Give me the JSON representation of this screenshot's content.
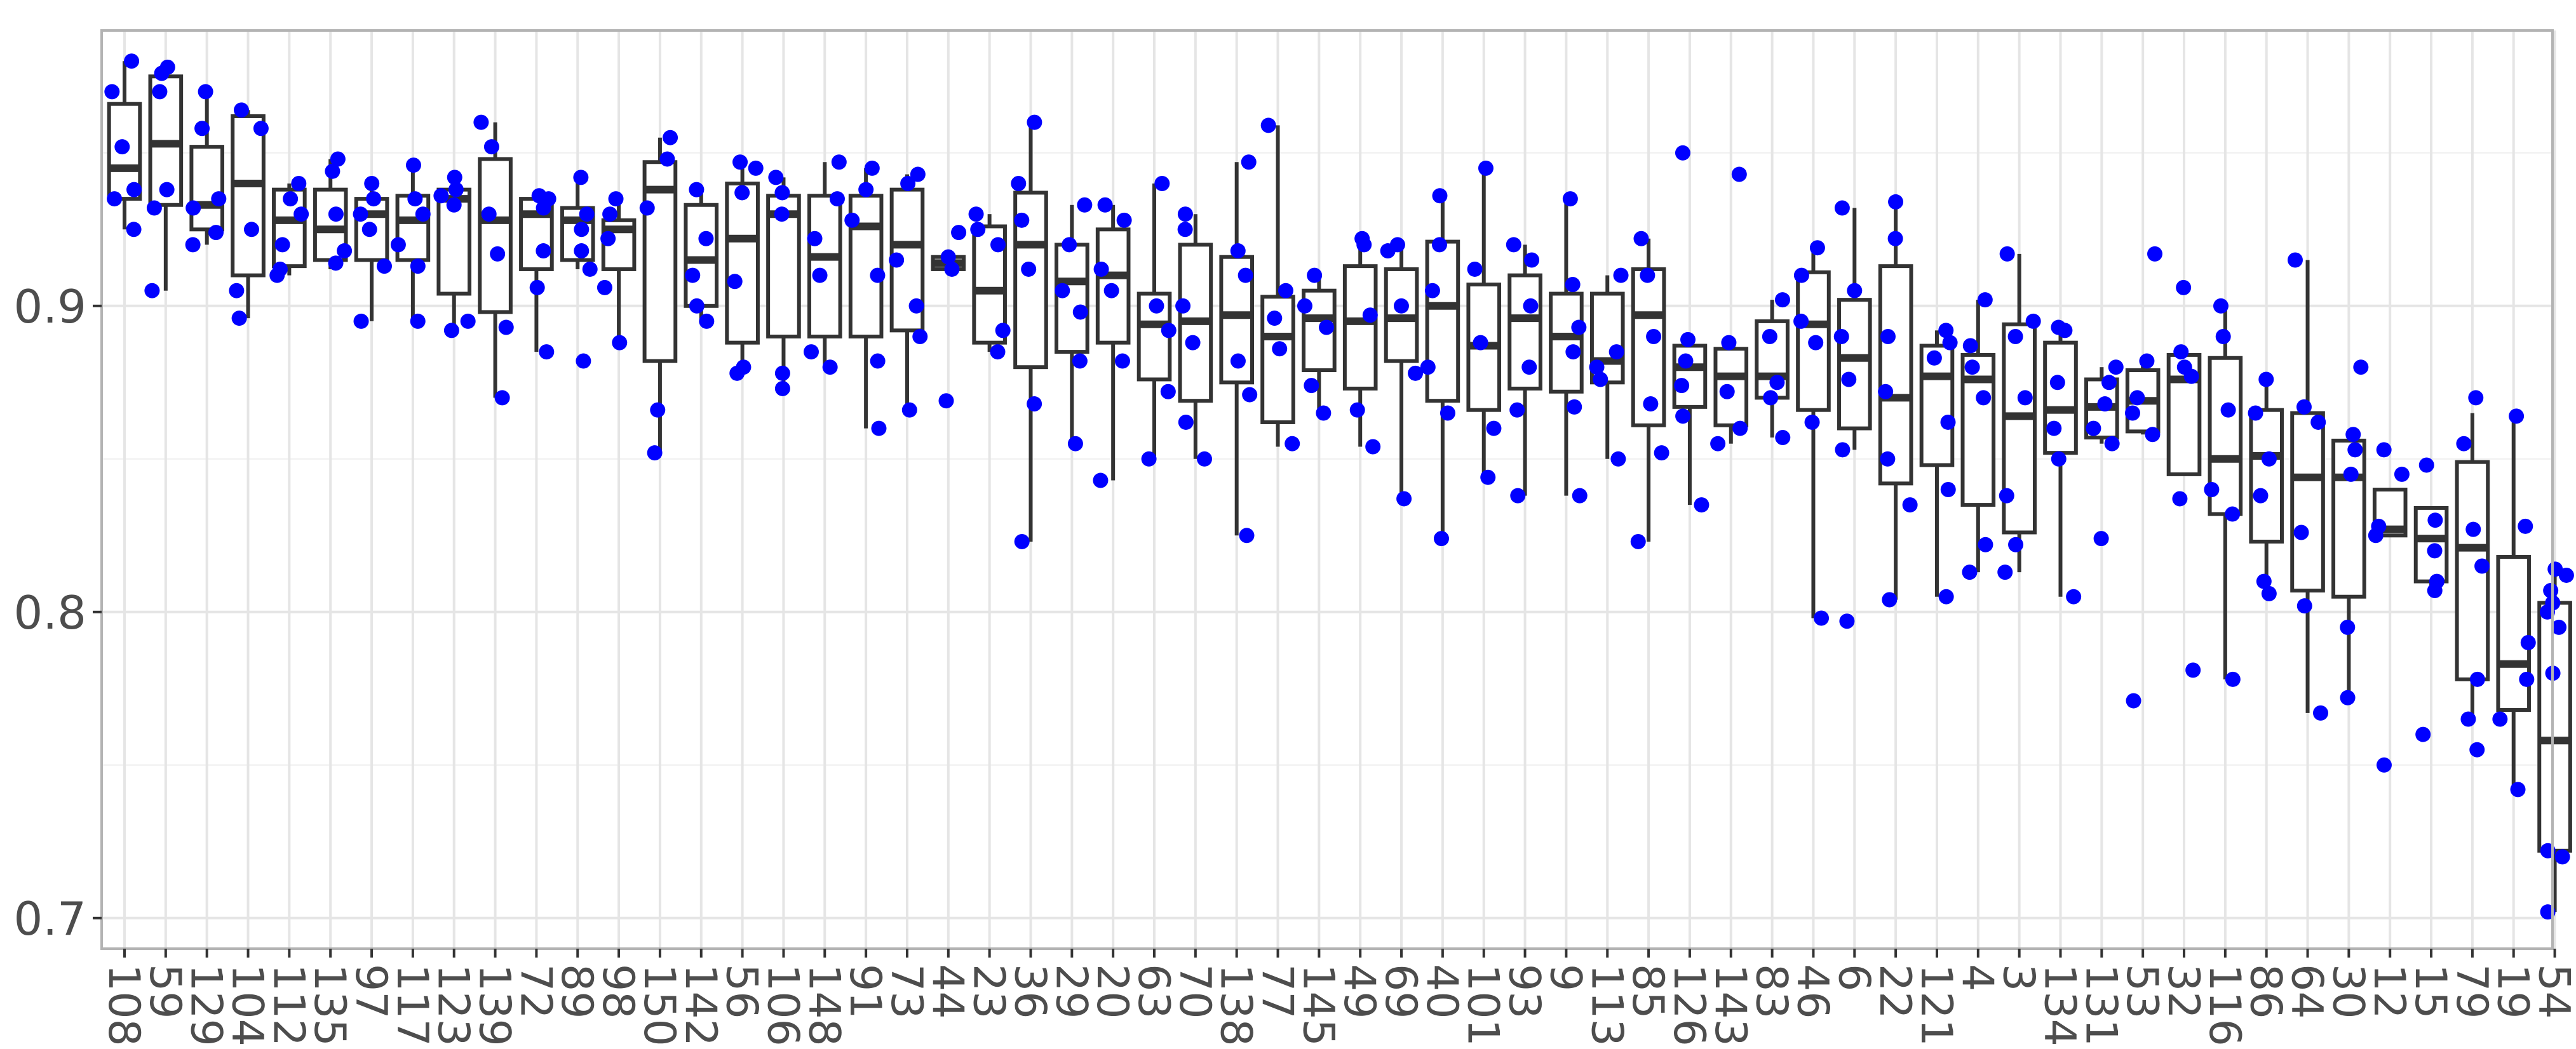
{
  "chart_data": {
    "type": "boxplot",
    "title": "",
    "xlabel": "",
    "ylabel": "",
    "ylim": [
      0.69,
      0.99
    ],
    "y_ticks": [
      0.7,
      0.8,
      0.9
    ],
    "y_tick_labels": [
      "0.7",
      "0.8",
      "0.9"
    ],
    "grid": true,
    "colors": {
      "box": "#333333",
      "points": "#0000ff",
      "grid": "#e5e5e5",
      "panel_border": "#b3b3b3"
    },
    "categories": [
      "108",
      "59",
      "129",
      "104",
      "112",
      "135",
      "97",
      "117",
      "123",
      "139",
      "72",
      "89",
      "98",
      "150",
      "142",
      "56",
      "106",
      "148",
      "91",
      "73",
      "44",
      "23",
      "36",
      "29",
      "20",
      "63",
      "70",
      "138",
      "77",
      "145",
      "49",
      "69",
      "40",
      "101",
      "93",
      "9",
      "113",
      "85",
      "126",
      "143",
      "83",
      "46",
      "6",
      "22",
      "121",
      "4",
      "3",
      "134",
      "131",
      "53",
      "32",
      "116",
      "86",
      "64",
      "30",
      "12",
      "15",
      "79",
      "19",
      "54"
    ],
    "boxes": [
      {
        "category": "108",
        "min": 0.925,
        "q1": 0.935,
        "median": 0.945,
        "q3": 0.966,
        "max": 0.98,
        "points": [
          0.98,
          0.97,
          0.952,
          0.938,
          0.935,
          0.925
        ]
      },
      {
        "category": "59",
        "min": 0.905,
        "q1": 0.933,
        "median": 0.953,
        "q3": 0.975,
        "max": 0.978,
        "points": [
          0.978,
          0.976,
          0.97,
          0.938,
          0.932,
          0.905
        ]
      },
      {
        "category": "129",
        "min": 0.92,
        "q1": 0.925,
        "median": 0.933,
        "q3": 0.952,
        "max": 0.97,
        "points": [
          0.97,
          0.958,
          0.935,
          0.932,
          0.924,
          0.92
        ]
      },
      {
        "category": "104",
        "min": 0.896,
        "q1": 0.91,
        "median": 0.94,
        "q3": 0.962,
        "max": 0.964,
        "points": [
          0.964,
          0.958,
          0.925,
          0.905,
          0.896
        ]
      },
      {
        "category": "112",
        "min": 0.91,
        "q1": 0.913,
        "median": 0.928,
        "q3": 0.938,
        "max": 0.94,
        "points": [
          0.94,
          0.935,
          0.93,
          0.92,
          0.912,
          0.91
        ]
      },
      {
        "category": "135",
        "min": 0.912,
        "q1": 0.915,
        "median": 0.925,
        "q3": 0.938,
        "max": 0.948,
        "points": [
          0.948,
          0.944,
          0.93,
          0.918,
          0.914
        ]
      },
      {
        "category": "97",
        "min": 0.895,
        "q1": 0.915,
        "median": 0.93,
        "q3": 0.935,
        "max": 0.94,
        "points": [
          0.94,
          0.935,
          0.93,
          0.925,
          0.913,
          0.895
        ]
      },
      {
        "category": "117",
        "min": 0.895,
        "q1": 0.915,
        "median": 0.928,
        "q3": 0.936,
        "max": 0.946,
        "points": [
          0.946,
          0.935,
          0.93,
          0.92,
          0.913,
          0.895
        ]
      },
      {
        "category": "123",
        "min": 0.892,
        "q1": 0.904,
        "median": 0.935,
        "q3": 0.938,
        "max": 0.942,
        "points": [
          0.942,
          0.938,
          0.936,
          0.933,
          0.895,
          0.892
        ]
      },
      {
        "category": "139",
        "min": 0.87,
        "q1": 0.898,
        "median": 0.928,
        "q3": 0.948,
        "max": 0.96,
        "points": [
          0.96,
          0.952,
          0.93,
          0.917,
          0.893,
          0.87
        ]
      },
      {
        "category": "72",
        "min": 0.885,
        "q1": 0.912,
        "median": 0.93,
        "q3": 0.935,
        "max": 0.936,
        "points": [
          0.936,
          0.935,
          0.932,
          0.918,
          0.906,
          0.885
        ]
      },
      {
        "category": "89",
        "min": 0.912,
        "q1": 0.915,
        "median": 0.928,
        "q3": 0.932,
        "max": 0.942,
        "points": [
          0.942,
          0.93,
          0.925,
          0.918,
          0.912,
          0.882
        ]
      },
      {
        "category": "98",
        "min": 0.888,
        "q1": 0.912,
        "median": 0.925,
        "q3": 0.928,
        "max": 0.935,
        "points": [
          0.935,
          0.93,
          0.922,
          0.906,
          0.888
        ]
      },
      {
        "category": "150",
        "min": 0.852,
        "q1": 0.882,
        "median": 0.938,
        "q3": 0.947,
        "max": 0.955,
        "points": [
          0.955,
          0.948,
          0.932,
          0.866,
          0.852
        ]
      },
      {
        "category": "142",
        "min": 0.895,
        "q1": 0.9,
        "median": 0.915,
        "q3": 0.933,
        "max": 0.938,
        "points": [
          0.938,
          0.922,
          0.91,
          0.9,
          0.895
        ]
      },
      {
        "category": "56",
        "min": 0.878,
        "q1": 0.888,
        "median": 0.922,
        "q3": 0.94,
        "max": 0.947,
        "points": [
          0.947,
          0.945,
          0.937,
          0.908,
          0.88,
          0.878
        ]
      },
      {
        "category": "106",
        "min": 0.873,
        "q1": 0.89,
        "median": 0.93,
        "q3": 0.936,
        "max": 0.942,
        "points": [
          0.942,
          0.937,
          0.93,
          0.878,
          0.873
        ]
      },
      {
        "category": "148",
        "min": 0.88,
        "q1": 0.89,
        "median": 0.916,
        "q3": 0.936,
        "max": 0.947,
        "points": [
          0.947,
          0.935,
          0.922,
          0.91,
          0.885,
          0.88
        ]
      },
      {
        "category": "91",
        "min": 0.86,
        "q1": 0.89,
        "median": 0.926,
        "q3": 0.936,
        "max": 0.945,
        "points": [
          0.945,
          0.938,
          0.928,
          0.91,
          0.882,
          0.86
        ]
      },
      {
        "category": "73",
        "min": 0.866,
        "q1": 0.892,
        "median": 0.92,
        "q3": 0.938,
        "max": 0.943,
        "points": [
          0.943,
          0.94,
          0.915,
          0.9,
          0.89,
          0.866
        ]
      },
      {
        "category": "44",
        "min": 0.912,
        "q1": 0.912,
        "median": 0.914,
        "q3": 0.916,
        "max": 0.918,
        "points": [
          0.924,
          0.916,
          0.912,
          0.869
        ]
      },
      {
        "category": "23",
        "min": 0.885,
        "q1": 0.888,
        "median": 0.905,
        "q3": 0.926,
        "max": 0.93,
        "points": [
          0.93,
          0.925,
          0.92,
          0.892,
          0.885
        ]
      },
      {
        "category": "36",
        "min": 0.823,
        "q1": 0.88,
        "median": 0.92,
        "q3": 0.937,
        "max": 0.96,
        "points": [
          0.96,
          0.94,
          0.928,
          0.912,
          0.868,
          0.823
        ]
      },
      {
        "category": "29",
        "min": 0.855,
        "q1": 0.885,
        "median": 0.908,
        "q3": 0.92,
        "max": 0.933,
        "points": [
          0.933,
          0.92,
          0.905,
          0.898,
          0.882,
          0.855
        ]
      },
      {
        "category": "20",
        "min": 0.843,
        "q1": 0.888,
        "median": 0.91,
        "q3": 0.925,
        "max": 0.933,
        "points": [
          0.933,
          0.928,
          0.912,
          0.905,
          0.882,
          0.843
        ]
      },
      {
        "category": "63",
        "min": 0.85,
        "q1": 0.876,
        "median": 0.894,
        "q3": 0.904,
        "max": 0.94,
        "points": [
          0.94,
          0.9,
          0.892,
          0.872,
          0.85
        ]
      },
      {
        "category": "70",
        "min": 0.85,
        "q1": 0.869,
        "median": 0.895,
        "q3": 0.92,
        "max": 0.93,
        "points": [
          0.93,
          0.925,
          0.9,
          0.888,
          0.862,
          0.85
        ]
      },
      {
        "category": "138",
        "min": 0.825,
        "q1": 0.875,
        "median": 0.897,
        "q3": 0.916,
        "max": 0.947,
        "points": [
          0.947,
          0.918,
          0.91,
          0.882,
          0.871,
          0.825
        ]
      },
      {
        "category": "77",
        "min": 0.854,
        "q1": 0.862,
        "median": 0.89,
        "q3": 0.903,
        "max": 0.959,
        "points": [
          0.959,
          0.905,
          0.896,
          0.886,
          0.855
        ]
      },
      {
        "category": "145",
        "min": 0.865,
        "q1": 0.879,
        "median": 0.896,
        "q3": 0.905,
        "max": 0.91,
        "points": [
          0.91,
          0.9,
          0.893,
          0.874,
          0.865
        ]
      },
      {
        "category": "49",
        "min": 0.854,
        "q1": 0.873,
        "median": 0.895,
        "q3": 0.913,
        "max": 0.922,
        "points": [
          0.922,
          0.92,
          0.897,
          0.866,
          0.854
        ]
      },
      {
        "category": "69",
        "min": 0.837,
        "q1": 0.882,
        "median": 0.896,
        "q3": 0.912,
        "max": 0.92,
        "points": [
          0.92,
          0.918,
          0.9,
          0.878,
          0.837
        ]
      },
      {
        "category": "40",
        "min": 0.824,
        "q1": 0.869,
        "median": 0.9,
        "q3": 0.921,
        "max": 0.936,
        "points": [
          0.936,
          0.92,
          0.905,
          0.88,
          0.865,
          0.824
        ]
      },
      {
        "category": "101",
        "min": 0.844,
        "q1": 0.866,
        "median": 0.887,
        "q3": 0.907,
        "max": 0.945,
        "points": [
          0.945,
          0.912,
          0.888,
          0.86,
          0.844
        ]
      },
      {
        "category": "93",
        "min": 0.838,
        "q1": 0.873,
        "median": 0.896,
        "q3": 0.91,
        "max": 0.92,
        "points": [
          0.92,
          0.915,
          0.9,
          0.88,
          0.866,
          0.838
        ]
      },
      {
        "category": "9",
        "min": 0.838,
        "q1": 0.872,
        "median": 0.89,
        "q3": 0.904,
        "max": 0.935,
        "points": [
          0.935,
          0.907,
          0.893,
          0.885,
          0.867,
          0.838
        ]
      },
      {
        "category": "113",
        "min": 0.85,
        "q1": 0.875,
        "median": 0.882,
        "q3": 0.904,
        "max": 0.91,
        "points": [
          0.91,
          0.885,
          0.88,
          0.876,
          0.85
        ]
      },
      {
        "category": "85",
        "min": 0.823,
        "q1": 0.861,
        "median": 0.897,
        "q3": 0.912,
        "max": 0.922,
        "points": [
          0.922,
          0.91,
          0.89,
          0.868,
          0.852,
          0.823
        ]
      },
      {
        "category": "126",
        "min": 0.835,
        "q1": 0.867,
        "median": 0.88,
        "q3": 0.887,
        "max": 0.889,
        "points": [
          0.95,
          0.889,
          0.882,
          0.874,
          0.864,
          0.835
        ]
      },
      {
        "category": "143",
        "min": 0.855,
        "q1": 0.861,
        "median": 0.877,
        "q3": 0.886,
        "max": 0.888,
        "points": [
          0.943,
          0.888,
          0.872,
          0.86,
          0.855
        ]
      },
      {
        "category": "83",
        "min": 0.857,
        "q1": 0.87,
        "median": 0.877,
        "q3": 0.895,
        "max": 0.902,
        "points": [
          0.902,
          0.89,
          0.875,
          0.87,
          0.857
        ]
      },
      {
        "category": "46",
        "min": 0.798,
        "q1": 0.866,
        "median": 0.894,
        "q3": 0.911,
        "max": 0.919,
        "points": [
          0.919,
          0.91,
          0.895,
          0.888,
          0.862,
          0.798
        ]
      },
      {
        "category": "6",
        "min": 0.853,
        "q1": 0.86,
        "median": 0.883,
        "q3": 0.902,
        "max": 0.932,
        "points": [
          0.932,
          0.905,
          0.89,
          0.876,
          0.853,
          0.797
        ]
      },
      {
        "category": "22",
        "min": 0.804,
        "q1": 0.842,
        "median": 0.87,
        "q3": 0.913,
        "max": 0.934,
        "points": [
          0.934,
          0.922,
          0.89,
          0.872,
          0.85,
          0.835,
          0.804
        ]
      },
      {
        "category": "121",
        "min": 0.805,
        "q1": 0.848,
        "median": 0.877,
        "q3": 0.887,
        "max": 0.892,
        "points": [
          0.892,
          0.888,
          0.883,
          0.862,
          0.84,
          0.805
        ]
      },
      {
        "category": "4",
        "min": 0.813,
        "q1": 0.835,
        "median": 0.876,
        "q3": 0.884,
        "max": 0.902,
        "points": [
          0.902,
          0.887,
          0.88,
          0.87,
          0.822,
          0.813
        ]
      },
      {
        "category": "3",
        "min": 0.813,
        "q1": 0.826,
        "median": 0.864,
        "q3": 0.894,
        "max": 0.917,
        "points": [
          0.917,
          0.895,
          0.89,
          0.87,
          0.838,
          0.822,
          0.813
        ]
      },
      {
        "category": "134",
        "min": 0.805,
        "q1": 0.852,
        "median": 0.866,
        "q3": 0.888,
        "max": 0.893,
        "points": [
          0.893,
          0.892,
          0.875,
          0.86,
          0.85,
          0.805
        ]
      },
      {
        "category": "131",
        "min": 0.855,
        "q1": 0.857,
        "median": 0.867,
        "q3": 0.876,
        "max": 0.88,
        "points": [
          0.88,
          0.875,
          0.868,
          0.86,
          0.855,
          0.824
        ]
      },
      {
        "category": "53",
        "min": 0.858,
        "q1": 0.859,
        "median": 0.869,
        "q3": 0.879,
        "max": 0.882,
        "points": [
          0.917,
          0.882,
          0.87,
          0.865,
          0.858,
          0.771
        ]
      },
      {
        "category": "32",
        "min": 0.845,
        "q1": 0.845,
        "median": 0.876,
        "q3": 0.884,
        "max": 0.885,
        "points": [
          0.906,
          0.885,
          0.88,
          0.877,
          0.837,
          0.781
        ]
      },
      {
        "category": "116",
        "min": 0.778,
        "q1": 0.832,
        "median": 0.85,
        "q3": 0.883,
        "max": 0.9,
        "points": [
          0.9,
          0.89,
          0.866,
          0.84,
          0.832,
          0.778
        ]
      },
      {
        "category": "86",
        "min": 0.806,
        "q1": 0.823,
        "median": 0.851,
        "q3": 0.866,
        "max": 0.876,
        "points": [
          0.876,
          0.865,
          0.85,
          0.838,
          0.81,
          0.806
        ]
      },
      {
        "category": "64",
        "min": 0.767,
        "q1": 0.807,
        "median": 0.844,
        "q3": 0.865,
        "max": 0.915,
        "points": [
          0.915,
          0.867,
          0.862,
          0.826,
          0.802,
          0.767
        ]
      },
      {
        "category": "30",
        "min": 0.772,
        "q1": 0.805,
        "median": 0.844,
        "q3": 0.856,
        "max": 0.858,
        "points": [
          0.88,
          0.858,
          0.853,
          0.845,
          0.795,
          0.772
        ]
      },
      {
        "category": "12",
        "min": 0.825,
        "q1": 0.825,
        "median": 0.827,
        "q3": 0.84,
        "max": 0.84,
        "points": [
          0.853,
          0.845,
          0.828,
          0.825,
          0.75
        ]
      },
      {
        "category": "15",
        "min": 0.808,
        "q1": 0.81,
        "median": 0.824,
        "q3": 0.834,
        "max": 0.834,
        "points": [
          0.848,
          0.83,
          0.82,
          0.81,
          0.807,
          0.76
        ]
      },
      {
        "category": "79",
        "min": 0.765,
        "q1": 0.778,
        "median": 0.821,
        "q3": 0.849,
        "max": 0.865,
        "points": [
          0.87,
          0.855,
          0.827,
          0.815,
          0.778,
          0.765,
          0.755
        ]
      },
      {
        "category": "19",
        "min": 0.743,
        "q1": 0.768,
        "median": 0.783,
        "q3": 0.818,
        "max": 0.862,
        "points": [
          0.864,
          0.828,
          0.79,
          0.778,
          0.765,
          0.742
        ]
      },
      {
        "category": "54",
        "min": 0.702,
        "q1": 0.722,
        "median": 0.758,
        "q3": 0.803,
        "max": 0.812,
        "points": [
          0.814,
          0.812,
          0.807,
          0.803,
          0.8,
          0.795,
          0.78,
          0.722,
          0.72,
          0.702
        ]
      }
    ]
  }
}
